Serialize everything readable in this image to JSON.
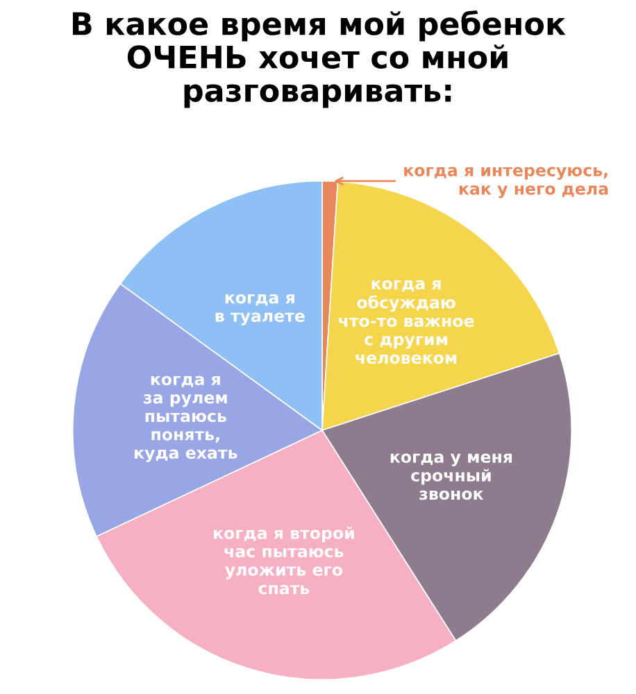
{
  "chart_data": {
    "type": "pie",
    "title": "В какое время мой ребенок\nОЧЕНЬ хочет со мной\nразговаривать:",
    "categories": [
      "когда я интересуюсь,\nкак у него дела",
      "когда я\nобсуждаю\nчто-то важное\nс другим\nчеловеком",
      "когда у меня\nсрочный\nзвонок",
      "когда я второй\nчас пытаюсь\nуложить его\nспать",
      "когда я\nза рулем\nпытаюсь\nпонять,\nкуда ехать",
      "когда я\nв туалете"
    ],
    "values": [
      1,
      19,
      21,
      27,
      17,
      15
    ],
    "colors": [
      "#e8875a",
      "#f5d54c",
      "#8e7b8e",
      "#f7afc4",
      "#98a6e6",
      "#8fc0f5"
    ]
  }
}
